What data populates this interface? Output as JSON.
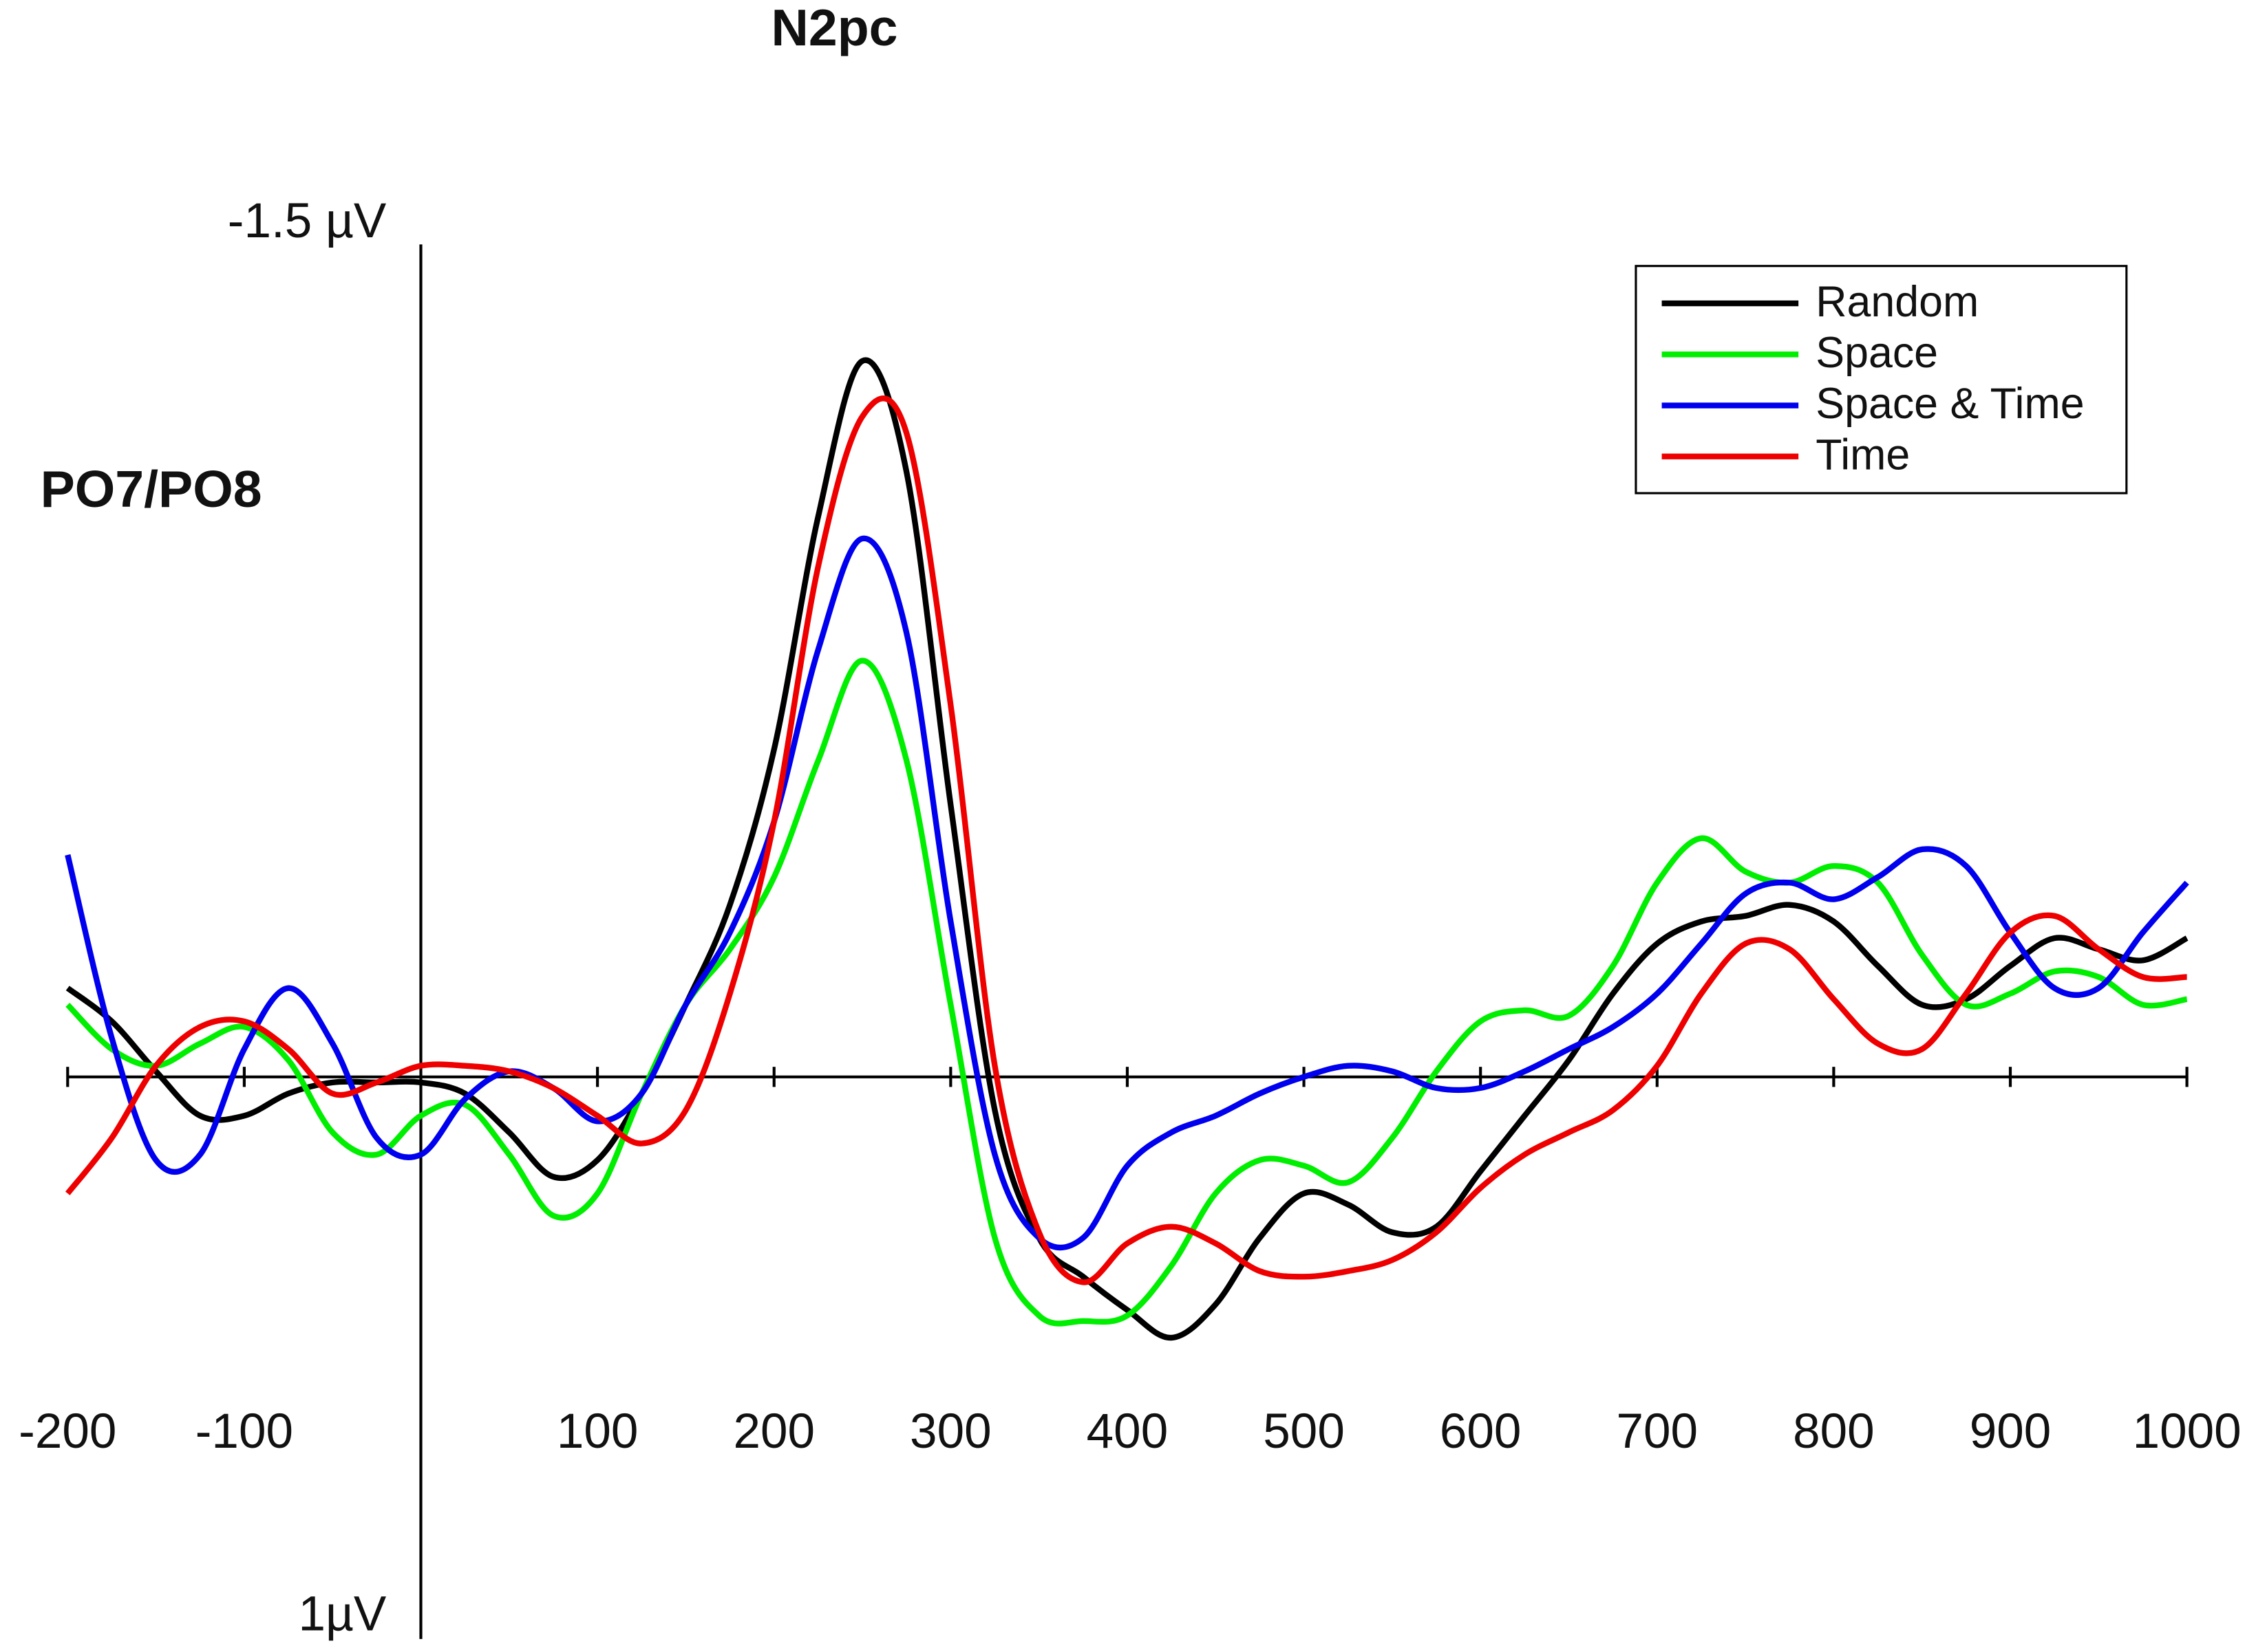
{
  "chart_data": {
    "type": "line",
    "title": "N2pc",
    "annotation": "PO7/PO8",
    "x": [
      -200,
      -175,
      -150,
      -125,
      -100,
      -75,
      -50,
      -25,
      0,
      25,
      50,
      75,
      100,
      125,
      150,
      175,
      200,
      225,
      250,
      275,
      300,
      325,
      350,
      375,
      400,
      425,
      450,
      475,
      500,
      525,
      550,
      575,
      600,
      625,
      650,
      675,
      700,
      725,
      750,
      775,
      800,
      825,
      850,
      875,
      900,
      925,
      950,
      975,
      1000
    ],
    "series": [
      {
        "name": "Random",
        "color": "#000000",
        "values": [
          -0.16,
          -0.1,
          -0.01,
          0.07,
          0.07,
          0.03,
          0.01,
          0.01,
          0.01,
          0.03,
          0.1,
          0.18,
          0.15,
          0.03,
          -0.13,
          -0.31,
          -0.59,
          -1.01,
          -1.29,
          -1.09,
          -0.49,
          0.06,
          0.29,
          0.36,
          0.42,
          0.47,
          0.41,
          0.29,
          0.21,
          0.23,
          0.28,
          0.27,
          0.17,
          0.07,
          -0.03,
          -0.15,
          -0.24,
          -0.28,
          -0.29,
          -0.31,
          -0.28,
          -0.2,
          -0.13,
          -0.14,
          -0.2,
          -0.25,
          -0.23,
          -0.21,
          -0.25
        ]
      },
      {
        "name": "Space",
        "color": "#00ee00",
        "values": [
          -0.13,
          -0.05,
          -0.02,
          -0.06,
          -0.09,
          -0.03,
          0.1,
          0.14,
          0.07,
          0.05,
          0.14,
          0.25,
          0.21,
          0.03,
          -0.13,
          -0.23,
          -0.36,
          -0.57,
          -0.75,
          -0.57,
          -0.13,
          0.29,
          0.43,
          0.44,
          0.43,
          0.34,
          0.21,
          0.15,
          0.16,
          0.19,
          0.11,
          -0.01,
          -0.1,
          -0.12,
          -0.11,
          -0.2,
          -0.35,
          -0.43,
          -0.37,
          -0.35,
          -0.38,
          -0.35,
          -0.22,
          -0.13,
          -0.15,
          -0.19,
          -0.18,
          -0.13,
          -0.14
        ]
      },
      {
        "name": "Space & Time",
        "color": "#0000ee",
        "values": [
          -0.4,
          -0.07,
          0.15,
          0.14,
          -0.05,
          -0.16,
          -0.06,
          0.11,
          0.14,
          0.04,
          -0.01,
          0.02,
          0.08,
          0.03,
          -0.13,
          -0.26,
          -0.46,
          -0.77,
          -0.97,
          -0.8,
          -0.28,
          0.14,
          0.29,
          0.29,
          0.16,
          0.1,
          0.07,
          0.03,
          0,
          -0.02,
          -0.01,
          0.02,
          0.02,
          -0.01,
          -0.05,
          -0.09,
          -0.15,
          -0.24,
          -0.33,
          -0.35,
          -0.32,
          -0.36,
          -0.41,
          -0.38,
          -0.26,
          -0.16,
          -0.16,
          -0.26,
          -0.35
        ]
      },
      {
        "name": "Time",
        "color": "#ee0000",
        "values": [
          0.21,
          0.11,
          -0.02,
          -0.09,
          -0.1,
          -0.05,
          0.03,
          0.01,
          -0.02,
          -0.02,
          -0.01,
          0.02,
          0.07,
          0.12,
          0.06,
          -0.15,
          -0.46,
          -0.92,
          -1.19,
          -1.16,
          -0.67,
          -0.02,
          0.28,
          0.37,
          0.3,
          0.27,
          0.3,
          0.35,
          0.36,
          0.35,
          0.33,
          0.28,
          0.2,
          0.14,
          0.1,
          0.06,
          -0.02,
          -0.15,
          -0.24,
          -0.23,
          -0.14,
          -0.06,
          -0.05,
          -0.15,
          -0.26,
          -0.29,
          -0.23,
          -0.18,
          -0.18
        ]
      }
    ],
    "xlim": [
      -200,
      1000
    ],
    "xticks": [
      -200,
      -100,
      100,
      200,
      300,
      400,
      500,
      600,
      700,
      800,
      900,
      1000
    ],
    "ylim": [
      -1.5,
      1
    ],
    "yticks": [
      {
        "value": -1.5,
        "label": "-1.5 µV"
      },
      {
        "value": 1,
        "label": "1µV"
      }
    ],
    "y_reversed": true,
    "legend": "upper right"
  }
}
